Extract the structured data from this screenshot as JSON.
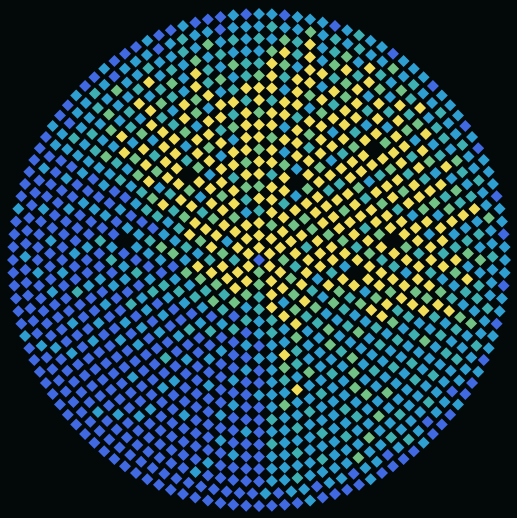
{
  "chart_data": {
    "type": "polar_heatmap",
    "zlim": [
      0,
      4
    ],
    "rings": [
      [
        0
      ],
      [
        4,
        4,
        4,
        3,
        4,
        4
      ],
      [
        4,
        4,
        4,
        3,
        4,
        4,
        3,
        4,
        4,
        2,
        4,
        4
      ],
      [
        4,
        3,
        4,
        4,
        4,
        2,
        3,
        4,
        4,
        2,
        3,
        4,
        4,
        4,
        3,
        1,
        4,
        4
      ],
      [
        2,
        4,
        4,
        3,
        4,
        2,
        4,
        4,
        4,
        3,
        1,
        4,
        2,
        1,
        3,
        2,
        3,
        4,
        2,
        4,
        4,
        4,
        3,
        1
      ],
      [
        4,
        4,
        2,
        4,
        3,
        3,
        4,
        4,
        4,
        1,
        2,
        4,
        3,
        4,
        2,
        1,
        2,
        0,
        2,
        3,
        2,
        3,
        4,
        1,
        3,
        4,
        3,
        4,
        4,
        2
      ],
      [
        3,
        4,
        4,
        1,
        4,
        4,
        4,
        3,
        4,
        4,
        2,
        4,
        1,
        3,
        2,
        4,
        1,
        2,
        1,
        0,
        2,
        1,
        0,
        1,
        2,
        1,
        3,
        1,
        2,
        4,
        4,
        2,
        4,
        3,
        4,
        3
      ],
      [
        4,
        2,
        4,
        null,
        3,
        4,
        4,
        4,
        4,
        3,
        4,
        1,
        4,
        3,
        3,
        1,
        2,
        1,
        3,
        1,
        1,
        0,
        1,
        0,
        0,
        2,
        1,
        0,
        1,
        2,
        1,
        0,
        3,
        1,
        2,
        3,
        4,
        1,
        4,
        4,
        2,
        4
      ],
      [
        4,
        4,
        3,
        1,
        4,
        4,
        2,
        4,
        3,
        4,
        4,
        2,
        4,
        null,
        4,
        2,
        2,
        1,
        3,
        1,
        1,
        2,
        4,
        1,
        1,
        0,
        0,
        1,
        0,
        0,
        2,
        0,
        0,
        1,
        2,
        0,
        1,
        3,
        1,
        1,
        2,
        4,
        3,
        4,
        1,
        4,
        4,
        3
      ],
      [
        3,
        4,
        1,
        4,
        4,
        3,
        4,
        2,
        4,
        4,
        4,
        2,
        4,
        3,
        4,
        4,
        1,
        3,
        1,
        2,
        1,
        3,
        1,
        1,
        2,
        3,
        1,
        0,
        1,
        0,
        0,
        1,
        0,
        0,
        1,
        0,
        1,
        0,
        2,
        1,
        0,
        1,
        2,
        0,
        2,
        4,
        2,
        4,
        null,
        3,
        4,
        1,
        4,
        4
      ],
      [
        4,
        3,
        4,
        4,
        2,
        4,
        1,
        4,
        4,
        3,
        2,
        4,
        4,
        3,
        4,
        2,
        4,
        4,
        3,
        4,
        1,
        3,
        1,
        2,
        1,
        1,
        3,
        1,
        2,
        1,
        0,
        0,
        1,
        0,
        0,
        0,
        1,
        0,
        0,
        1,
        0,
        1,
        1,
        0,
        2,
        0,
        1,
        1,
        0,
        2,
        3,
        1,
        4,
        4,
        2,
        4,
        3,
        4,
        1,
        4
      ],
      [
        4,
        4,
        1,
        4,
        3,
        4,
        4,
        2,
        4,
        4,
        1,
        4,
        3,
        4,
        4,
        null,
        4,
        2,
        4,
        3,
        4,
        4,
        2,
        1,
        1,
        3,
        1,
        2,
        1,
        1,
        4,
        1,
        1,
        1,
        0,
        0,
        0,
        1,
        0,
        0,
        0,
        2,
        0,
        0,
        1,
        0,
        2,
        0,
        1,
        1,
        0,
        null,
        1,
        0,
        1,
        2,
        4,
        3,
        4,
        4,
        1,
        4,
        4,
        2,
        3,
        4
      ],
      [
        3,
        4,
        4,
        2,
        4,
        4,
        1,
        4,
        3,
        4,
        4,
        2,
        4,
        4,
        2,
        4,
        4,
        3,
        4,
        1,
        4,
        4,
        2,
        3,
        1,
        2,
        1,
        1,
        3,
        1,
        1,
        2,
        1,
        1,
        3,
        1,
        0,
        0,
        1,
        0,
        0,
        0,
        0,
        1,
        0,
        0,
        0,
        1,
        0,
        1,
        0,
        0,
        1,
        0,
        2,
        1,
        0,
        0,
        1,
        0,
        1,
        3,
        4,
        2,
        4,
        4,
        3,
        1,
        4,
        4,
        2,
        4
      ],
      [
        4,
        2,
        4,
        4,
        1,
        3,
        4,
        4,
        2,
        4,
        null,
        4,
        3,
        4,
        3,
        4,
        1,
        4,
        4,
        2,
        4,
        4,
        3,
        4,
        2,
        1,
        2,
        1,
        1,
        2,
        1,
        3,
        1,
        1,
        1,
        2,
        1,
        1,
        2,
        0,
        0,
        0,
        1,
        0,
        0,
        0,
        0,
        1,
        0,
        0,
        0,
        0,
        1,
        0,
        0,
        1,
        0,
        1,
        0,
        0,
        2,
        0,
        1,
        0,
        0,
        2,
        1,
        3,
        4,
        1,
        4,
        2,
        4,
        3,
        1,
        4,
        4,
        2
      ],
      [
        4,
        4,
        1,
        4,
        3,
        4,
        2,
        4,
        4,
        1,
        4,
        3,
        4,
        4,
        2,
        4,
        4,
        3,
        4,
        1,
        4,
        4,
        2,
        4,
        3,
        4,
        1,
        2,
        1,
        1,
        2,
        1,
        1,
        3,
        1,
        2,
        1,
        1,
        1,
        2,
        1,
        1,
        0,
        1,
        0,
        0,
        0,
        0,
        1,
        0,
        0,
        0,
        0,
        1,
        0,
        0,
        0,
        0,
        1,
        0,
        0,
        1,
        0,
        0,
        1,
        0,
        0,
        1,
        0,
        1,
        1,
        2,
        4,
        1,
        3,
        4,
        2,
        1,
        4,
        3,
        4,
        1,
        2,
        4
      ],
      [
        3,
        4,
        2,
        4,
        4,
        1,
        4,
        3,
        4,
        2,
        4,
        1,
        4,
        4,
        2,
        4,
        2,
        4,
        3,
        1,
        4,
        4,
        2,
        4,
        1,
        3,
        4,
        2,
        1,
        3,
        1,
        2,
        1,
        1,
        3,
        1,
        1,
        2,
        1,
        1,
        2,
        1,
        1,
        1,
        2,
        0,
        0,
        0,
        1,
        0,
        0,
        0,
        0,
        0,
        1,
        0,
        0,
        0,
        0,
        0,
        0,
        1,
        0,
        0,
        0,
        2,
        0,
        0,
        1,
        0,
        0,
        0,
        1,
        0,
        0,
        1,
        3,
        1,
        4,
        2,
        1,
        4,
        3,
        2,
        1,
        4,
        2,
        3,
        1,
        2
      ],
      [
        2,
        4,
        3,
        1,
        4,
        4,
        2,
        3,
        4,
        1,
        4,
        2,
        4,
        3,
        1,
        4,
        3,
        1,
        4,
        2,
        3,
        4,
        1,
        2,
        4,
        3,
        1,
        2,
        4,
        1,
        2,
        1,
        1,
        1,
        2,
        1,
        1,
        1,
        3,
        1,
        1,
        2,
        1,
        1,
        1,
        2,
        1,
        1,
        0,
        0,
        1,
        0,
        0,
        0,
        0,
        0,
        0,
        0,
        1,
        0,
        0,
        0,
        0,
        0,
        0,
        0,
        0,
        1,
        0,
        0,
        0,
        1,
        0,
        0,
        0,
        0,
        1,
        0,
        0,
        1,
        1,
        2,
        1,
        3,
        1,
        2,
        4,
        1,
        2,
        3,
        1,
        4,
        2,
        1,
        3,
        2
      ],
      [
        1,
        3,
        4,
        2,
        4,
        1,
        3,
        4,
        2,
        4,
        3,
        1,
        4,
        2,
        3,
        4,
        1,
        2,
        4,
        1,
        3,
        2,
        4,
        1,
        2,
        3,
        1,
        4,
        2,
        1,
        3,
        2,
        1,
        2,
        1,
        2,
        1,
        1,
        1,
        2,
        1,
        1,
        3,
        1,
        1,
        1,
        2,
        1,
        1,
        1,
        1,
        0,
        0,
        0,
        0,
        1,
        0,
        0,
        0,
        0,
        0,
        0,
        0,
        1,
        0,
        0,
        0,
        0,
        0,
        1,
        0,
        0,
        0,
        0,
        1,
        0,
        0,
        0,
        1,
        0,
        0,
        0,
        0,
        1,
        0,
        1,
        1,
        2,
        1,
        3,
        1,
        1,
        2,
        4,
        1,
        2,
        1,
        3,
        1,
        2,
        1,
        1
      ],
      [
        2,
        1,
        3,
        2,
        4,
        1,
        2,
        3,
        1,
        4,
        2,
        1,
        3,
        2,
        4,
        1,
        2,
        2,
        1,
        3,
        2,
        1,
        2,
        4,
        1,
        2,
        1,
        3,
        1,
        2,
        2,
        1,
        3,
        1,
        1,
        2,
        1,
        1,
        1,
        2,
        1,
        1,
        1,
        2,
        1,
        1,
        3,
        1,
        1,
        1,
        1,
        2,
        1,
        1,
        0,
        0,
        0,
        0,
        0,
        1,
        0,
        0,
        0,
        0,
        0,
        0,
        0,
        0,
        1,
        0,
        0,
        0,
        0,
        0,
        1,
        0,
        0,
        0,
        0,
        0,
        1,
        0,
        0,
        0,
        0,
        1,
        0,
        0,
        0,
        0,
        1,
        2,
        1,
        1,
        2,
        1,
        3,
        1,
        1,
        2,
        1,
        1,
        2,
        1,
        3,
        1,
        2,
        1
      ],
      [
        1,
        2,
        1,
        1,
        3,
        1,
        2,
        1,
        2,
        1,
        1,
        3,
        1,
        2,
        1,
        1,
        2,
        1,
        1,
        2,
        1,
        1,
        2,
        1,
        1,
        3,
        1,
        1,
        2,
        1,
        1,
        1,
        2,
        1,
        1,
        2,
        1,
        1,
        1,
        0,
        1,
        1,
        0,
        1,
        2,
        1,
        0,
        1,
        1,
        0,
        1,
        1,
        0,
        1,
        1,
        0,
        1,
        0,
        0,
        0,
        0,
        0,
        0,
        0,
        0,
        0,
        0,
        0,
        0,
        0,
        0,
        0,
        0,
        0,
        0,
        0,
        0,
        0,
        1,
        0,
        0,
        0,
        0,
        0,
        0,
        1,
        0,
        0,
        0,
        0,
        0,
        0,
        1,
        0,
        1,
        1,
        0,
        1,
        1,
        2,
        1,
        0,
        1,
        1,
        1,
        0,
        1,
        2,
        1,
        1,
        0,
        1,
        1
      ],
      [
        1,
        1,
        0,
        1,
        1,
        1,
        0,
        1,
        2,
        1,
        1,
        0,
        1,
        1,
        1,
        0,
        1,
        1,
        1,
        0,
        1,
        0,
        1,
        1,
        1,
        0,
        1,
        1,
        0,
        1,
        1,
        1,
        0,
        1,
        1,
        0,
        1,
        1,
        0,
        1,
        0,
        0,
        1,
        0,
        0,
        0,
        1,
        0,
        0,
        0,
        0,
        1,
        0,
        0,
        0,
        0,
        1,
        0,
        0,
        0,
        0,
        0,
        0,
        0,
        0,
        0,
        0,
        0,
        0,
        0,
        0,
        0,
        0,
        0,
        0,
        0,
        0,
        0,
        0,
        0,
        0,
        0,
        0,
        0,
        1,
        0,
        0,
        0,
        0,
        0,
        0,
        0,
        0,
        0,
        1,
        0,
        0,
        0,
        0,
        0,
        0,
        1,
        0,
        0,
        1,
        0,
        0,
        1,
        0,
        0,
        0,
        1,
        0,
        0,
        1,
        0,
        0,
        0,
        1,
        0
      ]
    ]
  }
}
